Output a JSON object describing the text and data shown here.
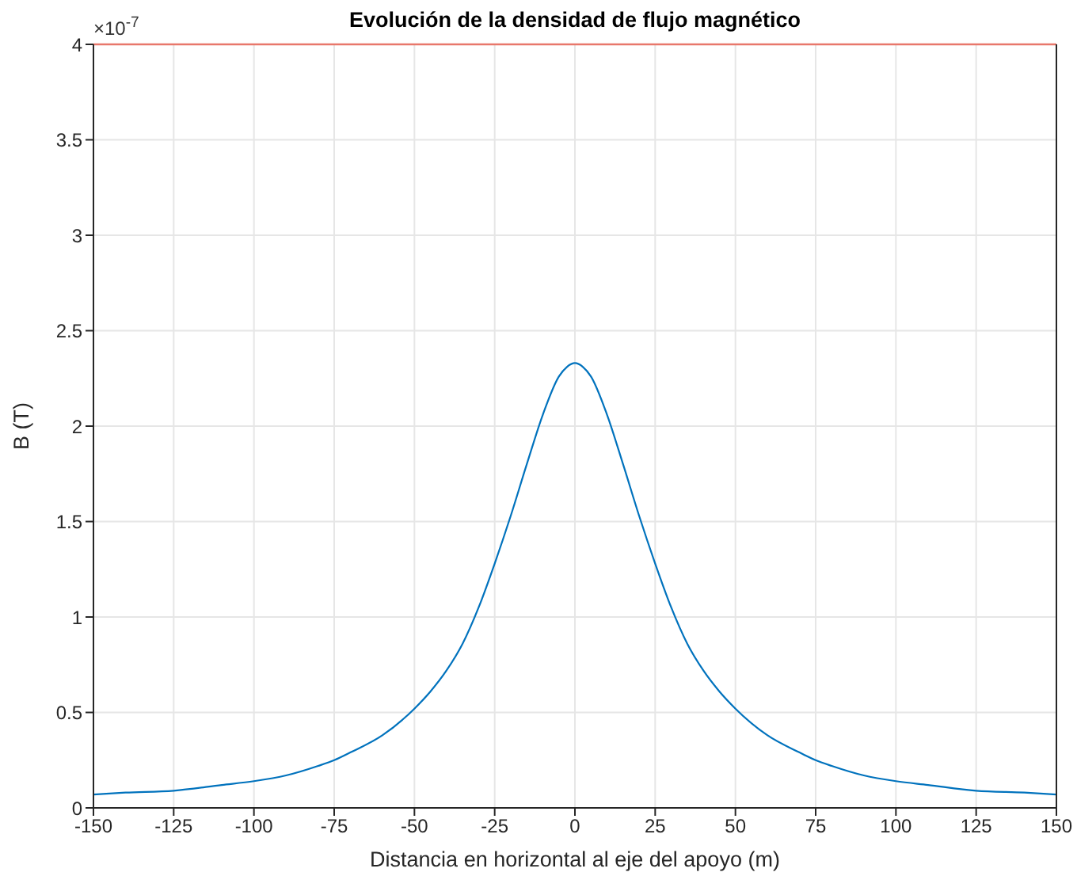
{
  "chart_data": {
    "type": "line",
    "title": "Evolución de la densidad de flujo magnético",
    "xlabel": "Distancia en horizontal al eje del apoyo (m)",
    "ylabel": "B (T)",
    "annotations": [
      "×10$^{-7}$"
    ],
    "x": [
      -150,
      -140,
      -125,
      -110,
      -100,
      -90,
      -80,
      -75,
      -70,
      -60,
      -50,
      -45,
      -40,
      -35,
      -30,
      -25,
      -20,
      -15,
      -10,
      -5,
      -2.5,
      0,
      2.5,
      5,
      10,
      15,
      20,
      25,
      30,
      35,
      40,
      45,
      50,
      60,
      70,
      75,
      80,
      90,
      100,
      110,
      125,
      140,
      150
    ],
    "series": [
      {
        "color": "#0072bd",
        "values": [
          0.07,
          0.08,
          0.09,
          0.12,
          0.14,
          0.17,
          0.22,
          0.25,
          0.29,
          0.38,
          0.52,
          0.61,
          0.72,
          0.86,
          1.05,
          1.28,
          1.53,
          1.8,
          2.06,
          2.26,
          2.31,
          2.33,
          2.31,
          2.26,
          2.06,
          1.8,
          1.53,
          1.28,
          1.05,
          0.86,
          0.72,
          0.61,
          0.52,
          0.38,
          0.29,
          0.25,
          0.22,
          0.17,
          0.14,
          0.12,
          0.09,
          0.08,
          0.07
        ]
      }
    ],
    "xlim": [
      -150,
      150
    ],
    "xticks": [
      -150,
      -125,
      -100,
      -75,
      -50,
      -25,
      0,
      25,
      50,
      75,
      100,
      125,
      150
    ],
    "ylim": [
      0,
      4
    ],
    "yticks": [
      0,
      0.5,
      1,
      1.5,
      2,
      2.5,
      3,
      3.5,
      4
    ],
    "ref_lines": [
      {
        "axis": "y",
        "value": 4,
        "color": "#e8776b"
      }
    ],
    "grid": true,
    "marker": "none",
    "line_style": "solid"
  }
}
